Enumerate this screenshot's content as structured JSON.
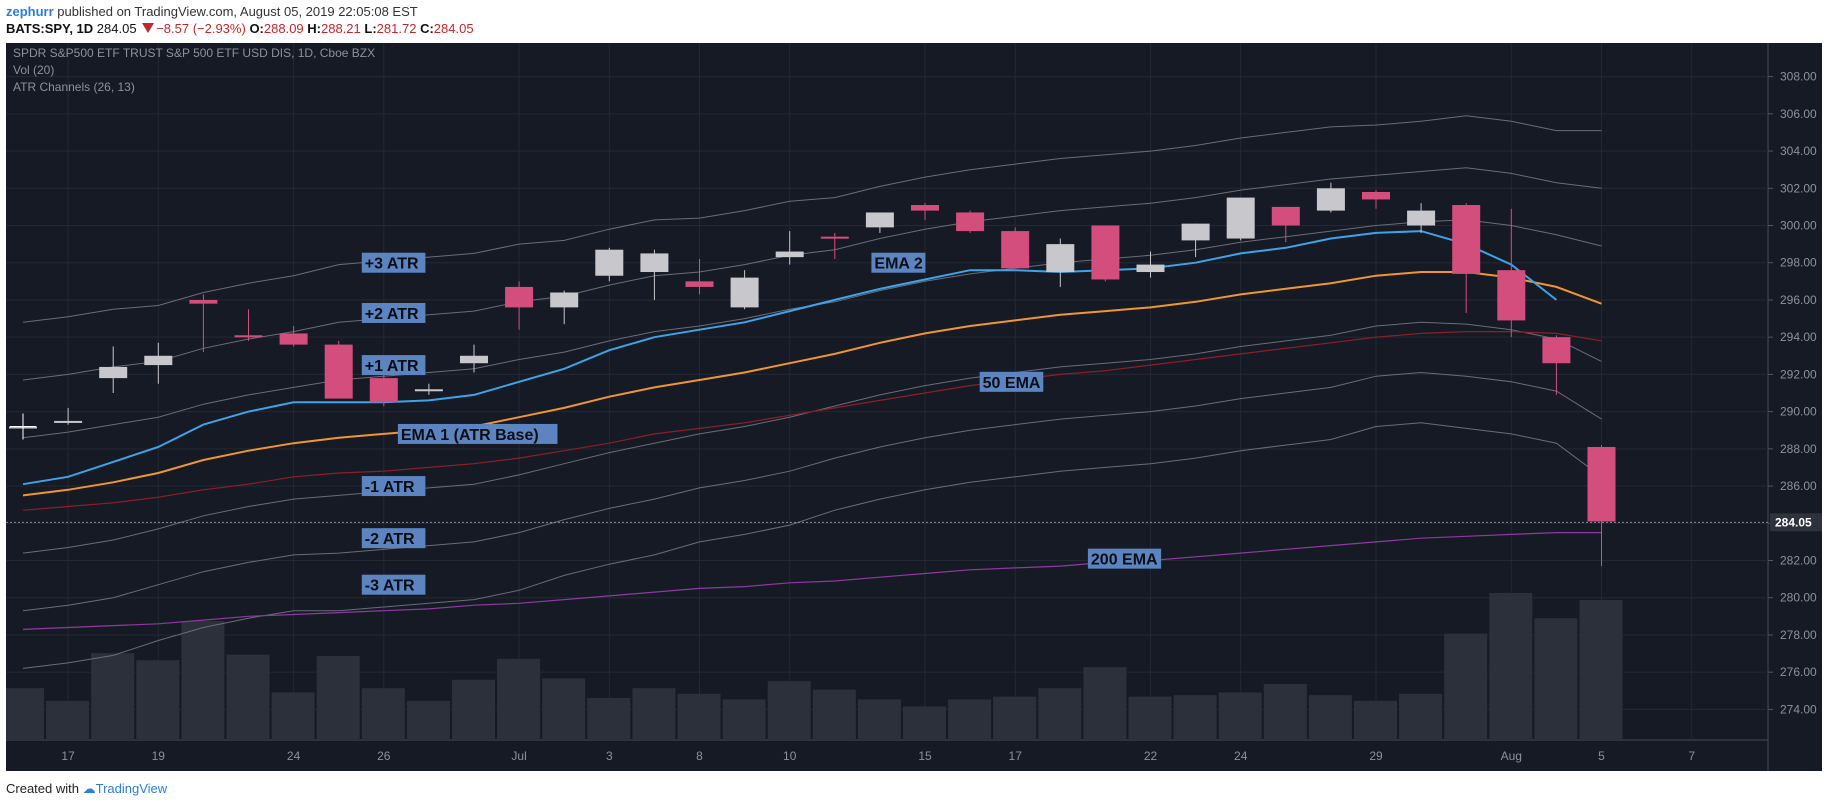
{
  "header": {
    "user": "zephurr",
    "published": "published on TradingView.com, August 05, 2019 22:05:08 EST",
    "symbol": "BATS:SPY, 1D",
    "last": "284.05",
    "change": "−8.57 (−2.93%)",
    "o_label": "O:",
    "o": "288.09",
    "h_label": "H:",
    "h": "288.21",
    "l_label": "L:",
    "l": "281.72",
    "c_label": "C:",
    "c": "284.05"
  },
  "footer": {
    "created_with": "Created with",
    "brand": "TradingView"
  },
  "colors": {
    "background": "#161a25",
    "bull": "#c8c8cc",
    "bear": "#d44e7d",
    "ema2": "#3fa3e8",
    "ema1": "#f09630",
    "ema50": "#8b1f2a",
    "ema200": "#8e3aa0",
    "channel": "#6a6d78",
    "label_bg": "#5b84c0"
  },
  "chart_data": {
    "type": "candlestick",
    "title": "SPDR S&P500 ETF TRUST S&P 500 ETF USD DIS, 1D, Cboe BZX",
    "indicators": [
      "Vol (20)",
      "ATR Channels (26, 13)"
    ],
    "ylim": [
      273,
      309
    ],
    "y_ticks": [
      "308.00",
      "306.00",
      "304.00",
      "302.00",
      "300.00",
      "298.00",
      "296.00",
      "294.00",
      "292.00",
      "290.00",
      "288.00",
      "286.00",
      "284.00",
      "282.00",
      "280.00",
      "278.00",
      "276.00",
      "274.00"
    ],
    "price_label": "284.05",
    "x_ticks": [
      {
        "label": "17",
        "index": 1
      },
      {
        "label": "19",
        "index": 3
      },
      {
        "label": "24",
        "index": 6
      },
      {
        "label": "26",
        "index": 8
      },
      {
        "label": "Jul",
        "index": 11
      },
      {
        "label": "3",
        "index": 13
      },
      {
        "label": "8",
        "index": 15
      },
      {
        "label": "10",
        "index": 17
      },
      {
        "label": "15",
        "index": 20
      },
      {
        "label": "17",
        "index": 22
      },
      {
        "label": "22",
        "index": 25
      },
      {
        "label": "24",
        "index": 27
      },
      {
        "label": "29",
        "index": 30
      },
      {
        "label": "Aug",
        "index": 33
      },
      {
        "label": "5",
        "index": 35
      },
      {
        "label": "7",
        "index": 37
      }
    ],
    "candles": [
      {
        "o": 289.2,
        "h": 289.6,
        "l": 288.5,
        "c": 289.2
      },
      {
        "o": 289.4,
        "h": 290.2,
        "l": 289.3,
        "c": 289.5
      },
      {
        "o": 291.8,
        "h": 293.5,
        "l": 291.0,
        "c": 292.4
      },
      {
        "o": 292.5,
        "h": 293.7,
        "l": 291.5,
        "c": 293.0
      },
      {
        "o": 296.0,
        "h": 296.3,
        "l": 293.2,
        "c": 295.8
      },
      {
        "o": 294.1,
        "h": 295.5,
        "l": 293.8,
        "c": 294.0
      },
      {
        "o": 294.2,
        "h": 294.6,
        "l": 293.5,
        "c": 293.6
      },
      {
        "o": 293.6,
        "h": 293.8,
        "l": 290.7,
        "c": 290.7
      },
      {
        "o": 291.8,
        "h": 292.0,
        "l": 290.3,
        "c": 290.5
      },
      {
        "o": 291.1,
        "h": 291.5,
        "l": 290.9,
        "c": 291.2
      },
      {
        "o": 292.6,
        "h": 293.6,
        "l": 292.1,
        "c": 293.0
      },
      {
        "o": 296.7,
        "h": 297.0,
        "l": 294.4,
        "c": 295.6
      },
      {
        "o": 295.6,
        "h": 296.5,
        "l": 294.7,
        "c": 296.4
      },
      {
        "o": 297.3,
        "h": 298.8,
        "l": 297.0,
        "c": 298.7
      },
      {
        "o": 297.5,
        "h": 298.7,
        "l": 296.0,
        "c": 298.5
      },
      {
        "o": 297.0,
        "h": 298.2,
        "l": 296.3,
        "c": 296.7
      },
      {
        "o": 295.6,
        "h": 297.6,
        "l": 295.5,
        "c": 297.2
      },
      {
        "o": 298.3,
        "h": 299.7,
        "l": 297.9,
        "c": 298.6
      },
      {
        "o": 299.4,
        "h": 299.6,
        "l": 298.2,
        "c": 299.3
      },
      {
        "o": 299.9,
        "h": 300.7,
        "l": 299.6,
        "c": 300.7
      },
      {
        "o": 301.1,
        "h": 301.2,
        "l": 300.3,
        "c": 300.8
      },
      {
        "o": 300.7,
        "h": 300.8,
        "l": 299.6,
        "c": 299.7
      },
      {
        "o": 299.7,
        "h": 299.9,
        "l": 297.7,
        "c": 297.7
      },
      {
        "o": 297.5,
        "h": 299.3,
        "l": 296.7,
        "c": 299.0
      },
      {
        "o": 300.0,
        "h": 300.0,
        "l": 297.0,
        "c": 297.1
      },
      {
        "o": 297.5,
        "h": 298.6,
        "l": 297.2,
        "c": 297.9
      },
      {
        "o": 299.2,
        "h": 300.1,
        "l": 298.3,
        "c": 300.1
      },
      {
        "o": 299.3,
        "h": 301.5,
        "l": 299.2,
        "c": 301.5
      },
      {
        "o": 301.0,
        "h": 301.0,
        "l": 299.1,
        "c": 300.0
      },
      {
        "o": 300.8,
        "h": 302.3,
        "l": 300.7,
        "c": 302.0
      },
      {
        "o": 301.8,
        "h": 301.9,
        "l": 300.9,
        "c": 301.4
      },
      {
        "o": 300.0,
        "h": 301.2,
        "l": 299.6,
        "c": 300.8
      },
      {
        "o": 301.1,
        "h": 301.2,
        "l": 295.3,
        "c": 297.4
      },
      {
        "o": 297.6,
        "h": 300.9,
        "l": 294.0,
        "c": 294.9
      },
      {
        "o": 294.0,
        "h": 294.1,
        "l": 290.9,
        "c": 292.6
      },
      {
        "o": 288.1,
        "h": 288.2,
        "l": 281.7,
        "c": 284.1
      }
    ],
    "volume_relative": [
      0.37,
      0.28,
      0.62,
      0.57,
      0.85,
      0.61,
      0.34,
      0.6,
      0.37,
      0.28,
      0.43,
      0.58,
      0.44,
      0.3,
      0.37,
      0.33,
      0.29,
      0.42,
      0.36,
      0.29,
      0.24,
      0.29,
      0.31,
      0.37,
      0.52,
      0.31,
      0.32,
      0.34,
      0.4,
      0.32,
      0.28,
      0.33,
      0.76,
      1.05,
      0.87,
      1.0
    ],
    "ema2": [
      286.1,
      286.5,
      287.3,
      288.1,
      289.3,
      290.0,
      290.5,
      290.5,
      290.5,
      290.6,
      290.9,
      291.6,
      292.3,
      293.3,
      294.0,
      294.4,
      294.8,
      295.4,
      296.0,
      296.6,
      297.1,
      297.6,
      297.6,
      297.5,
      297.6,
      297.7,
      298.0,
      298.5,
      298.8,
      299.3,
      299.6,
      299.7,
      299.0,
      297.9,
      296.0,
      null
    ],
    "ema1": [
      285.5,
      285.8,
      286.2,
      286.7,
      287.4,
      287.9,
      288.3,
      288.6,
      288.8,
      289.0,
      289.2,
      289.7,
      290.2,
      290.8,
      291.3,
      291.7,
      292.1,
      292.6,
      293.1,
      293.7,
      294.2,
      294.6,
      294.9,
      295.2,
      295.4,
      295.6,
      295.9,
      296.3,
      296.6,
      296.9,
      297.3,
      297.5,
      297.5,
      297.2,
      296.7,
      295.8
    ],
    "ema50": [
      284.7,
      284.9,
      285.1,
      285.4,
      285.8,
      286.1,
      286.5,
      286.7,
      286.8,
      287.0,
      287.2,
      287.5,
      287.9,
      288.3,
      288.8,
      289.1,
      289.4,
      289.8,
      290.2,
      290.6,
      291.0,
      291.4,
      291.7,
      292.0,
      292.2,
      292.5,
      292.8,
      293.1,
      293.4,
      293.7,
      294.0,
      294.2,
      294.3,
      294.3,
      294.2,
      293.8
    ],
    "ema200": [
      278.3,
      278.4,
      278.5,
      278.6,
      278.8,
      279.0,
      279.1,
      279.2,
      279.3,
      279.4,
      279.6,
      279.7,
      279.9,
      280.1,
      280.3,
      280.5,
      280.6,
      280.8,
      280.9,
      281.1,
      281.3,
      281.5,
      281.6,
      281.7,
      281.9,
      282.0,
      282.2,
      282.4,
      282.6,
      282.8,
      283.0,
      283.2,
      283.3,
      283.4,
      283.5,
      283.5
    ],
    "atr_mult": [
      3,
      2,
      1,
      -1,
      -2,
      -3
    ],
    "atr": [
      3.1,
      3.1,
      3.1,
      3.0,
      3.0,
      3.0,
      3.0,
      3.1,
      3.1,
      3.1,
      3.1,
      3.1,
      3.0,
      3.0,
      3.0,
      2.9,
      2.9,
      2.9,
      2.8,
      2.8,
      2.8,
      2.8,
      2.8,
      2.8,
      2.8,
      2.8,
      2.8,
      2.8,
      2.8,
      2.8,
      2.7,
      2.7,
      2.8,
      2.8,
      2.8,
      3.1
    ],
    "annotations": [
      {
        "text": "+3 ATR",
        "index": 8,
        "price": 298.0
      },
      {
        "text": "+2 ATR",
        "index": 8,
        "price": 295.3
      },
      {
        "text": "+1 ATR",
        "index": 8,
        "price": 292.5
      },
      {
        "text": "EMA 1 (ATR Base)",
        "index": 8.8,
        "price": 288.8
      },
      {
        "text": "-1 ATR",
        "index": 8,
        "price": 286.0
      },
      {
        "text": "-2 ATR",
        "index": 8,
        "price": 283.2
      },
      {
        "text": "-3 ATR",
        "index": 8,
        "price": 280.7
      },
      {
        "text": "EMA 2",
        "index": 19.3,
        "price": 298.0
      },
      {
        "text": "50 EMA",
        "index": 21.7,
        "price": 291.6
      },
      {
        "text": "200 EMA",
        "index": 24.1,
        "price": 282.1
      }
    ]
  }
}
